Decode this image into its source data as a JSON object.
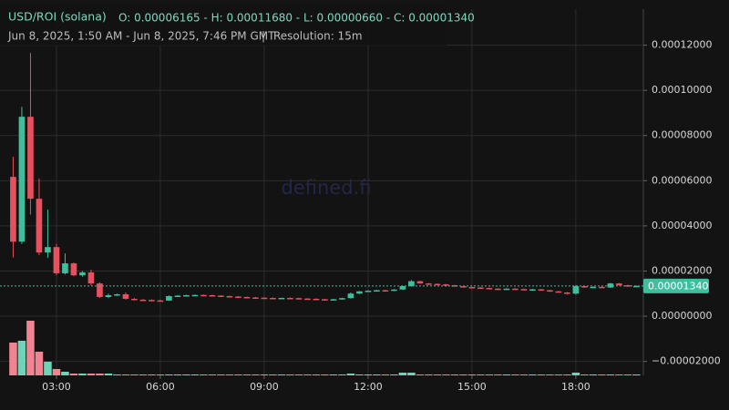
{
  "chart_data": {
    "type": "candlestick",
    "title": "USD/ROI (solana)",
    "ohlc_text": "O: 0.00006165 - H: 0.00011680 - L: 0.00000660 - C: 0.00001340",
    "subtitle": "Jun 8, 2025, 1:50 AM - Jun 8, 2025, 7:46 PM GMT",
    "separator": "|",
    "resolution": "Resolution: 15m",
    "watermark": "defined.fi",
    "last_price": {
      "value": 1.34e-05,
      "label": "0.00001340"
    },
    "grid": true,
    "up_color": "#3dbf9d",
    "down_color": "#e6505f",
    "volume_up_color": "#6fd3b8",
    "volume_down_color": "#f08591",
    "xlim": [
      1.37,
      19.95
    ],
    "xticks": [
      {
        "value": 3,
        "label": "03:00"
      },
      {
        "value": 6,
        "label": "06:00"
      },
      {
        "value": 9,
        "label": "09:00"
      },
      {
        "value": 12,
        "label": "12:00"
      },
      {
        "value": 15,
        "label": "15:00"
      },
      {
        "value": 18,
        "label": "18:00"
      }
    ],
    "ylim": [
      -2.62e-05,
      0.00014
    ],
    "yticks": [
      {
        "value": 0.00012,
        "label": "0.00012000"
      },
      {
        "value": 0.0001,
        "label": "0.00010000"
      },
      {
        "value": 8e-05,
        "label": "0.00008000"
      },
      {
        "value": 6e-05,
        "label": "0.00006000"
      },
      {
        "value": 4e-05,
        "label": "0.00004000"
      },
      {
        "value": 2e-05,
        "label": "0.00002000"
      },
      {
        "value": 0,
        "label": "0.00000000"
      },
      {
        "value": -2e-05,
        "label": "−0.00002000"
      }
    ],
    "x": [
      1.75,
      2,
      2.25,
      2.5,
      2.75,
      3,
      3.25,
      3.5,
      3.75,
      4,
      4.25,
      4.5,
      4.75,
      5,
      5.25,
      5.5,
      5.75,
      6,
      6.25,
      6.5,
      6.75,
      7,
      7.25,
      7.5,
      7.75,
      8,
      8.25,
      8.5,
      8.75,
      9,
      9.25,
      9.5,
      9.75,
      10,
      10.25,
      10.5,
      10.75,
      11,
      11.25,
      11.5,
      11.75,
      12,
      12.25,
      12.5,
      12.75,
      13,
      13.25,
      13.5,
      13.75,
      14,
      14.25,
      14.5,
      14.75,
      15,
      15.25,
      15.5,
      15.75,
      16,
      16.25,
      16.5,
      16.75,
      17,
      17.25,
      17.5,
      17.75,
      18,
      18.25,
      18.5,
      18.75,
      19,
      19.25,
      19.5,
      19.75
    ],
    "open": [
      6.17e-05,
      3.3e-05,
      8.83e-05,
      5.2e-05,
      2.82e-05,
      3.06e-05,
      1.9e-05,
      2.34e-05,
      1.81e-05,
      1.94e-05,
      1.45e-05,
      8.5e-06,
      9.3e-06,
      9.7e-06,
      7.7e-06,
      7.3e-06,
      7.2e-06,
      7e-06,
      6.9e-06,
      8.9e-06,
      9.1e-06,
      9.3e-06,
      9.4e-06,
      9.3e-06,
      9.1e-06,
      8.9e-06,
      8.7e-06,
      8.5e-06,
      8.3e-06,
      8.2e-06,
      8.1e-06,
      8e-06,
      8.1e-06,
      8e-06,
      7.8e-06,
      7.7e-06,
      7.5e-06,
      7.3e-06,
      7.5e-06,
      8e-06,
      1e-05,
      1.1e-05,
      1.13e-05,
      1.15e-05,
      1.13e-05,
      1.18e-05,
      1.33e-05,
      1.55e-05,
      1.45e-05,
      1.43e-05,
      1.41e-05,
      1.37e-05,
      1.33e-05,
      1.29e-05,
      1.27e-05,
      1.25e-05,
      1.22e-05,
      1.2e-05,
      1.22e-05,
      1.2e-05,
      1.18e-05,
      1.19e-05,
      1.15e-05,
      1.1e-05,
      1.05e-05,
      1e-05,
      1.33e-05,
      1.28e-05,
      1.3e-05,
      1.27e-05,
      1.45e-05,
      1.37e-05,
      1.34e-05
    ],
    "high": [
      7.06e-05,
      9.27e-05,
      0.0001165,
      6.1e-05,
      4.72e-05,
      3.2e-05,
      2.78e-05,
      2.38e-05,
      2e-05,
      2.06e-05,
      1.5e-05,
      1e-05,
      1e-05,
      1.05e-05,
      8e-06,
      7.6e-06,
      7.4e-06,
      7.3e-06,
      9.2e-06,
      9.3e-06,
      9.5e-06,
      9.6e-06,
      9.6e-06,
      9.5e-06,
      9.3e-06,
      9.1e-06,
      8.9e-06,
      8.7e-06,
      8.5e-06,
      8.4e-06,
      8.3e-06,
      8.2e-06,
      8.3e-06,
      8.2e-06,
      8e-06,
      7.9e-06,
      7.7e-06,
      7.7e-06,
      8.2e-06,
      1.05e-05,
      1.12e-05,
      1.15e-05,
      1.17e-05,
      1.17e-05,
      1.2e-05,
      1.36e-05,
      1.6e-05,
      1.57e-05,
      1.47e-05,
      1.45e-05,
      1.43e-05,
      1.39e-05,
      1.35e-05,
      1.31e-05,
      1.29e-05,
      1.27e-05,
      1.24e-05,
      1.24e-05,
      1.24e-05,
      1.22e-05,
      1.21e-05,
      1.21e-05,
      1.17e-05,
      1.12e-05,
      1.07e-05,
      1.38e-05,
      1.35e-05,
      1.32e-05,
      1.32e-05,
      1.48e-05,
      1.47e-05,
      1.39e-05,
      1.36e-05
    ],
    "low": [
      2.6e-05,
      3.2e-05,
      4.5e-05,
      2.7e-05,
      2.58e-05,
      1.81e-05,
      1.85e-05,
      1.77e-05,
      1.75e-05,
      1.37e-05,
      8.1e-06,
      8e-06,
      9e-06,
      7.3e-06,
      7e-06,
      7e-06,
      6.8e-06,
      6.7e-06,
      6.8e-06,
      8.7e-06,
      9e-06,
      9.1e-06,
      9.1e-06,
      8.9e-06,
      8.7e-06,
      8.5e-06,
      8.3e-06,
      8.1e-06,
      8e-06,
      7.9e-06,
      7.8e-06,
      7.8e-06,
      7.8e-06,
      7.6e-06,
      7.5e-06,
      7.3e-06,
      7.1e-06,
      7.1e-06,
      7.3e-06,
      7.8e-06,
      9.8e-06,
      1.08e-05,
      1.11e-05,
      1.11e-05,
      1.11e-05,
      1.16e-05,
      1.31e-05,
      1.43e-05,
      1.41e-05,
      1.39e-05,
      1.35e-05,
      1.31e-05,
      1.27e-05,
      1.25e-05,
      1.23e-05,
      1.2e-05,
      1.18e-05,
      1.18e-05,
      1.18e-05,
      1.16e-05,
      1.16e-05,
      1.13e-05,
      1.08e-05,
      1.03e-05,
      9.6e-06,
      9.6e-06,
      1.26e-05,
      1.26e-05,
      1.25e-05,
      1.25e-05,
      1.35e-05,
      1.32e-05,
      1.32e-05
    ],
    "close": [
      3.3e-05,
      8.83e-05,
      5.2e-05,
      2.82e-05,
      3.06e-05,
      1.9e-05,
      2.34e-05,
      1.81e-05,
      1.94e-05,
      1.45e-05,
      8.5e-06,
      9.3e-06,
      9.7e-06,
      7.7e-06,
      7.3e-06,
      7.2e-06,
      7e-06,
      6.9e-06,
      8.9e-06,
      9.1e-06,
      9.3e-06,
      9.4e-06,
      9.3e-06,
      9.1e-06,
      8.9e-06,
      8.7e-06,
      8.5e-06,
      8.3e-06,
      8.2e-06,
      8.1e-06,
      8e-06,
      8.1e-06,
      8e-06,
      7.8e-06,
      7.7e-06,
      7.5e-06,
      7.3e-06,
      7.5e-06,
      8e-06,
      1e-05,
      1.1e-05,
      1.13e-05,
      1.15e-05,
      1.13e-05,
      1.18e-05,
      1.33e-05,
      1.55e-05,
      1.45e-05,
      1.43e-05,
      1.41e-05,
      1.37e-05,
      1.33e-05,
      1.29e-05,
      1.27e-05,
      1.25e-05,
      1.22e-05,
      1.2e-05,
      1.22e-05,
      1.2e-05,
      1.18e-05,
      1.19e-05,
      1.15e-05,
      1.1e-05,
      1.05e-05,
      1e-05,
      1.33e-05,
      1.28e-05,
      1.3e-05,
      1.27e-05,
      1.45e-05,
      1.37e-05,
      1.34e-05,
      1.34e-05
    ],
    "volume": [
      36,
      38,
      60,
      26,
      15,
      7,
      4,
      2,
      2,
      2,
      2,
      2,
      1,
      1,
      1,
      1,
      1,
      1,
      1,
      1,
      1,
      1,
      1,
      1,
      1,
      1,
      1,
      1,
      1,
      1,
      1,
      1,
      1,
      1,
      1,
      1,
      1,
      1,
      1,
      2,
      1,
      1,
      1,
      1,
      1,
      3,
      3,
      1,
      1,
      1,
      1,
      1,
      1,
      1,
      1,
      1,
      1,
      1,
      1,
      1,
      1,
      1,
      1,
      1,
      1,
      3,
      1,
      1,
      1,
      1,
      1,
      1,
      1
    ]
  }
}
